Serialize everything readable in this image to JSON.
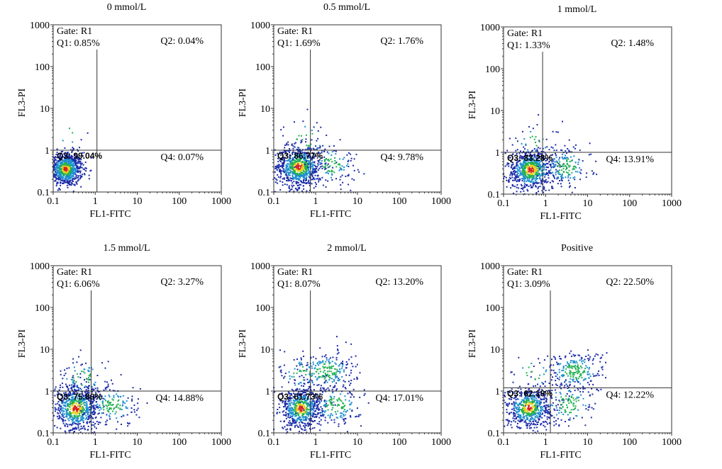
{
  "chart_data": [
    {
      "type": "scatter",
      "title": "0 mmol/L",
      "xlabel": "FL1-FITC",
      "ylabel": "FL3-PI",
      "scale": "log",
      "xlim": [
        0.1,
        1000
      ],
      "ylim": [
        0.1,
        1000
      ],
      "xticks": [
        "0.1",
        "1",
        "10",
        "100",
        "1000"
      ],
      "yticks": [
        "0.1",
        "1",
        "10",
        "100",
        "1000"
      ],
      "x_gate": 1.1,
      "y_gate": 1,
      "gate": "Gate: R1",
      "quadrants": {
        "Q1": "Q1: 0.85%",
        "Q2": "Q2: 0.04%",
        "Q3": "Q3: 99.04%",
        "Q4": "Q4: 0.07%"
      },
      "clusters": [
        {
          "x": 0.2,
          "y": 0.35,
          "sx": 0.2,
          "sy": 0.2,
          "n": 850
        },
        {
          "x": 0.25,
          "y": 2.8,
          "sx": 0.25,
          "sy": 0.3,
          "n": 10
        }
      ]
    },
    {
      "type": "scatter",
      "title": "0.5 mmol/L",
      "xlabel": "FL1-FITC",
      "ylabel": "FL3-PI",
      "scale": "log",
      "xlim": [
        0.1,
        1000
      ],
      "ylim": [
        0.1,
        1000
      ],
      "xticks": [
        "0.1",
        "1",
        "10",
        "100",
        "1000"
      ],
      "yticks": [
        "0.1",
        "1",
        "10",
        "100",
        "1000"
      ],
      "x_gate": 0.75,
      "y_gate": 1,
      "gate": "Gate: R1",
      "quadrants": {
        "Q1": "Q1: 1.69%",
        "Q2": "Q2: 1.76%",
        "Q3": "Q3: 86.77%",
        "Q4": "Q4: 9.78%"
      },
      "clusters": [
        {
          "x": 0.4,
          "y": 0.4,
          "sx": 0.28,
          "sy": 0.25,
          "n": 800
        },
        {
          "x": 2.5,
          "y": 0.45,
          "sx": 0.3,
          "sy": 0.25,
          "n": 120
        },
        {
          "x": 0.6,
          "y": 1.8,
          "sx": 0.3,
          "sy": 0.25,
          "n": 40
        }
      ]
    },
    {
      "type": "scatter",
      "title": "1 mmol/L",
      "xlabel": "FL1-FITC",
      "ylabel": "FL3-PI",
      "scale": "log",
      "xlim": [
        0.1,
        1000
      ],
      "ylim": [
        0.1,
        1000
      ],
      "xticks": [
        "0.1",
        "1",
        "10",
        "100",
        "1000"
      ],
      "yticks": [
        "0.1",
        "1",
        "10",
        "100",
        "1000"
      ],
      "x_gate": 0.85,
      "y_gate": 1,
      "gate": "Gate: R1",
      "quadrants": {
        "Q1": "Q1: 1.33%",
        "Q2": "Q2: 1.48%",
        "Q3": "Q3: 83.28%",
        "Q4": "Q4: 13.91%"
      },
      "clusters": [
        {
          "x": 0.45,
          "y": 0.38,
          "sx": 0.28,
          "sy": 0.25,
          "n": 760
        },
        {
          "x": 3.0,
          "y": 0.45,
          "sx": 0.3,
          "sy": 0.25,
          "n": 160
        },
        {
          "x": 0.6,
          "y": 1.8,
          "sx": 0.3,
          "sy": 0.25,
          "n": 35
        }
      ]
    },
    {
      "type": "scatter",
      "title": "1.5 mmol/L",
      "xlabel": "FL1-FITC",
      "ylabel": "FL3-PI",
      "scale": "log",
      "xlim": [
        0.1,
        1000
      ],
      "ylim": [
        0.1,
        1000
      ],
      "xticks": [
        "0.1",
        "1",
        "10",
        "100",
        "1000"
      ],
      "yticks": [
        "0.1",
        "1",
        "10",
        "100",
        "1000"
      ],
      "x_gate": 0.8,
      "y_gate": 1,
      "gate": "Gate: R1",
      "quadrants": {
        "Q1": "Q1: 6.06%",
        "Q2": "Q2: 3.27%",
        "Q3": "Q3: 75.80%",
        "Q4": "Q4: 14.88%"
      },
      "clusters": [
        {
          "x": 0.35,
          "y": 0.38,
          "sx": 0.28,
          "sy": 0.28,
          "n": 720
        },
        {
          "x": 2.5,
          "y": 0.45,
          "sx": 0.32,
          "sy": 0.25,
          "n": 170
        },
        {
          "x": 0.5,
          "y": 2.0,
          "sx": 0.3,
          "sy": 0.25,
          "n": 80
        }
      ]
    },
    {
      "type": "scatter",
      "title": "2 mmol/L",
      "xlabel": "FL1-FITC",
      "ylabel": "FL3-PI",
      "scale": "log",
      "xlim": [
        0.1,
        1000
      ],
      "ylim": [
        0.1,
        1000
      ],
      "xticks": [
        "0.1",
        "1",
        "10",
        "100",
        "1000"
      ],
      "yticks": [
        "0.1",
        "1",
        "10",
        "100",
        "1000"
      ],
      "x_gate": 0.75,
      "y_gate": 1,
      "gate": "Gate: R1",
      "quadrants": {
        "Q1": "Q1: 8.07%",
        "Q2": "Q2: 13.20%",
        "Q3": "Q3: 61.73%",
        "Q4": "Q4: 17.01%"
      },
      "clusters": [
        {
          "x": 0.45,
          "y": 0.38,
          "sx": 0.25,
          "sy": 0.25,
          "n": 620
        },
        {
          "x": 3.0,
          "y": 0.45,
          "sx": 0.32,
          "sy": 0.25,
          "n": 180
        },
        {
          "x": 1.8,
          "y": 3.0,
          "sx": 0.35,
          "sy": 0.25,
          "n": 220
        },
        {
          "x": 0.5,
          "y": 2.5,
          "sx": 0.3,
          "sy": 0.25,
          "n": 60
        }
      ]
    },
    {
      "type": "scatter",
      "title": "Positive",
      "xlabel": "FL1-FITC",
      "ylabel": "FL3-PI",
      "scale": "log",
      "xlim": [
        0.1,
        1000
      ],
      "ylim": [
        0.1,
        1000
      ],
      "xticks": [
        "0.1",
        "1",
        "10",
        "100",
        "1000"
      ],
      "yticks": [
        "0.1",
        "1",
        "10",
        "100",
        "1000"
      ],
      "x_gate": 1.3,
      "y_gate": 1.2,
      "gate": "Gate: R1",
      "quadrants": {
        "Q1": "Q1: 3.09%",
        "Q2": "Q2: 22.50%",
        "Q3": "Q3: 62.19%",
        "Q4": "Q4: 12.22%"
      },
      "clusters": [
        {
          "x": 0.4,
          "y": 0.4,
          "sx": 0.28,
          "sy": 0.25,
          "n": 620
        },
        {
          "x": 5.0,
          "y": 3.0,
          "sx": 0.35,
          "sy": 0.25,
          "n": 230
        },
        {
          "x": 3.5,
          "y": 0.5,
          "sx": 0.35,
          "sy": 0.28,
          "n": 130
        },
        {
          "x": 0.5,
          "y": 2.5,
          "sx": 0.3,
          "sy": 0.25,
          "n": 30
        }
      ]
    }
  ]
}
